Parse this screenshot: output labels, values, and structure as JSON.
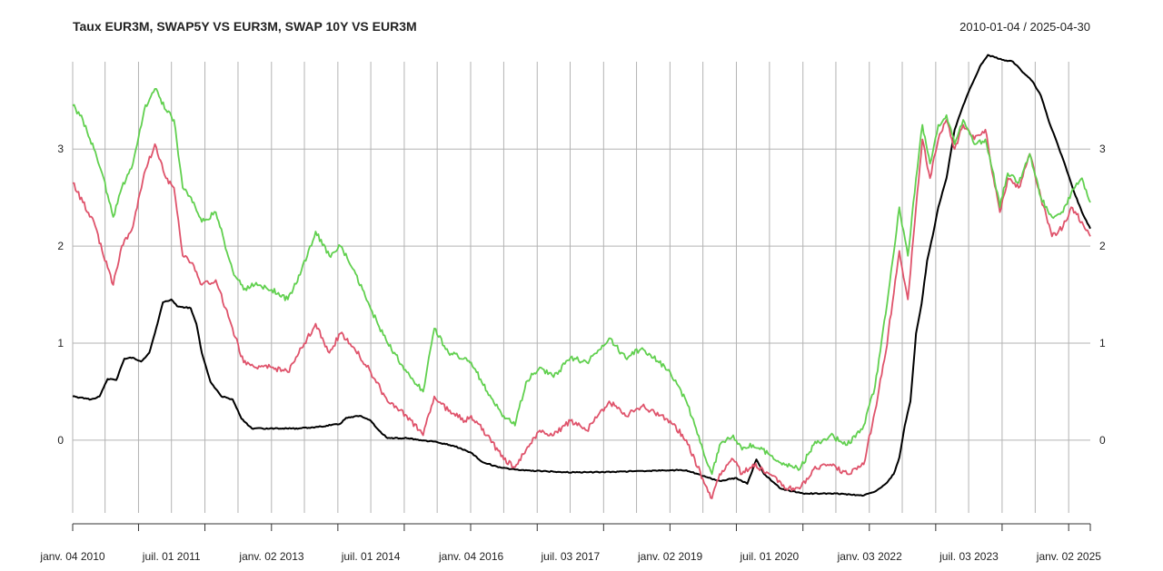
{
  "chart_data": {
    "type": "line",
    "title": "Taux EUR3M, SWAP5Y VS EUR3M, SWAP 10Y VS EUR3M",
    "date_range": "2010-01-04 / 2025-04-30",
    "xlabel": "",
    "ylabel": "",
    "x_range": [
      "2010-01-04",
      "2025-04-30"
    ],
    "ylim": [
      -0.75,
      3.9
    ],
    "grid": true,
    "x_ticks": [
      {
        "date": "2010-01-04",
        "label": "janv. 04 2010"
      },
      {
        "date": "2011-07-01",
        "label": "juil. 01 2011"
      },
      {
        "date": "2013-01-02",
        "label": "janv. 02 2013"
      },
      {
        "date": "2014-07-01",
        "label": "juil. 01 2014"
      },
      {
        "date": "2016-01-04",
        "label": "janv. 04 2016"
      },
      {
        "date": "2017-07-03",
        "label": "juil. 03 2017"
      },
      {
        "date": "2019-01-02",
        "label": "janv. 02 2019"
      },
      {
        "date": "2020-07-01",
        "label": "juil. 01 2020"
      },
      {
        "date": "2022-01-03",
        "label": "janv. 03 2022"
      },
      {
        "date": "2023-07-03",
        "label": "juil. 03 2023"
      },
      {
        "date": "2025-01-02",
        "label": "janv. 02 2025"
      }
    ],
    "y_ticks": [
      {
        "value": 0,
        "label": "0"
      },
      {
        "value": 1,
        "label": "1"
      },
      {
        "value": 2,
        "label": "2"
      },
      {
        "value": 3,
        "label": "3"
      }
    ],
    "series": [
      {
        "color": "#000000",
        "points": [
          [
            "2010-01-04",
            0.45
          ],
          [
            "2010-04-15",
            0.42
          ],
          [
            "2010-06-01",
            0.45
          ],
          [
            "2010-07-15",
            0.63
          ],
          [
            "2010-09-01",
            0.62
          ],
          [
            "2010-10-15",
            0.84
          ],
          [
            "2010-12-01",
            0.85
          ],
          [
            "2011-01-15",
            0.81
          ],
          [
            "2011-03-01",
            0.9
          ],
          [
            "2011-04-15",
            1.2
          ],
          [
            "2011-05-15",
            1.42
          ],
          [
            "2011-07-01",
            1.45
          ],
          [
            "2011-08-01",
            1.38
          ],
          [
            "2011-10-15",
            1.36
          ],
          [
            "2011-11-15",
            1.2
          ],
          [
            "2011-12-15",
            0.9
          ],
          [
            "2012-02-01",
            0.6
          ],
          [
            "2012-04-01",
            0.45
          ],
          [
            "2012-06-01",
            0.42
          ],
          [
            "2012-07-20",
            0.22
          ],
          [
            "2012-09-15",
            0.12
          ],
          [
            "2013-06-01",
            0.12
          ],
          [
            "2013-10-01",
            0.14
          ],
          [
            "2014-01-15",
            0.17
          ],
          [
            "2014-02-15",
            0.23
          ],
          [
            "2014-05-01",
            0.25
          ],
          [
            "2014-06-10",
            0.22
          ],
          [
            "2014-07-01",
            0.2
          ],
          [
            "2014-08-15",
            0.1
          ],
          [
            "2014-10-01",
            0.02
          ],
          [
            "2015-01-15",
            0.02
          ],
          [
            "2015-04-01",
            0.0
          ],
          [
            "2015-07-01",
            -0.02
          ],
          [
            "2015-10-01",
            -0.06
          ],
          [
            "2016-01-04",
            -0.13
          ],
          [
            "2016-03-01",
            -0.22
          ],
          [
            "2016-06-01",
            -0.28
          ],
          [
            "2016-10-01",
            -0.31
          ],
          [
            "2017-06-01",
            -0.33
          ],
          [
            "2018-01-01",
            -0.33
          ],
          [
            "2019-01-02",
            -0.31
          ],
          [
            "2019-04-01",
            -0.31
          ],
          [
            "2019-07-01",
            -0.37
          ],
          [
            "2019-10-01",
            -0.42
          ],
          [
            "2020-01-01",
            -0.39
          ],
          [
            "2020-03-01",
            -0.45
          ],
          [
            "2020-04-20",
            -0.2
          ],
          [
            "2020-06-01",
            -0.35
          ],
          [
            "2020-09-01",
            -0.5
          ],
          [
            "2021-01-01",
            -0.55
          ],
          [
            "2021-07-01",
            -0.55
          ],
          [
            "2021-12-01",
            -0.57
          ],
          [
            "2022-02-01",
            -0.53
          ],
          [
            "2022-04-01",
            -0.45
          ],
          [
            "2022-05-15",
            -0.35
          ],
          [
            "2022-06-15",
            -0.18
          ],
          [
            "2022-07-15",
            0.15
          ],
          [
            "2022-08-15",
            0.4
          ],
          [
            "2022-09-15",
            1.1
          ],
          [
            "2022-10-15",
            1.4
          ],
          [
            "2022-11-15",
            1.85
          ],
          [
            "2022-12-15",
            2.1
          ],
          [
            "2023-01-15",
            2.4
          ],
          [
            "2023-03-01",
            2.7
          ],
          [
            "2023-04-15",
            3.2
          ],
          [
            "2023-06-01",
            3.45
          ],
          [
            "2023-07-15",
            3.65
          ],
          [
            "2023-09-01",
            3.85
          ],
          [
            "2023-10-15",
            3.97
          ],
          [
            "2024-01-01",
            3.92
          ],
          [
            "2024-03-01",
            3.9
          ],
          [
            "2024-05-01",
            3.78
          ],
          [
            "2024-06-15",
            3.7
          ],
          [
            "2024-08-01",
            3.55
          ],
          [
            "2024-09-15",
            3.28
          ],
          [
            "2024-11-01",
            3.05
          ],
          [
            "2024-12-15",
            2.82
          ],
          [
            "2025-02-01",
            2.55
          ],
          [
            "2025-03-15",
            2.35
          ],
          [
            "2025-04-30",
            2.18
          ]
        ]
      },
      {
        "color": "#df536b",
        "points": [
          [
            "2010-01-04",
            2.65
          ],
          [
            "2010-03-01",
            2.45
          ],
          [
            "2010-05-01",
            2.25
          ],
          [
            "2010-06-15",
            1.95
          ],
          [
            "2010-08-15",
            1.6
          ],
          [
            "2010-10-01",
            2.0
          ],
          [
            "2010-12-01",
            2.2
          ],
          [
            "2011-02-01",
            2.75
          ],
          [
            "2011-04-01",
            3.05
          ],
          [
            "2011-06-01",
            2.7
          ],
          [
            "2011-07-15",
            2.6
          ],
          [
            "2011-09-01",
            1.9
          ],
          [
            "2011-11-01",
            1.8
          ],
          [
            "2011-12-15",
            1.6
          ],
          [
            "2012-03-01",
            1.65
          ],
          [
            "2012-06-01",
            1.15
          ],
          [
            "2012-08-01",
            0.8
          ],
          [
            "2012-10-01",
            0.75
          ],
          [
            "2013-01-02",
            0.75
          ],
          [
            "2013-04-01",
            0.7
          ],
          [
            "2013-06-15",
            0.95
          ],
          [
            "2013-09-01",
            1.2
          ],
          [
            "2013-11-15",
            0.9
          ],
          [
            "2014-01-15",
            1.1
          ],
          [
            "2014-04-01",
            0.95
          ],
          [
            "2014-07-01",
            0.7
          ],
          [
            "2014-10-01",
            0.4
          ],
          [
            "2015-01-15",
            0.25
          ],
          [
            "2015-04-15",
            0.05
          ],
          [
            "2015-06-15",
            0.45
          ],
          [
            "2015-09-01",
            0.3
          ],
          [
            "2015-12-01",
            0.2
          ],
          [
            "2016-01-04",
            0.25
          ],
          [
            "2016-04-01",
            0.05
          ],
          [
            "2016-07-01",
            -0.2
          ],
          [
            "2016-09-01",
            -0.28
          ],
          [
            "2016-11-01",
            -0.1
          ],
          [
            "2017-01-15",
            0.1
          ],
          [
            "2017-04-01",
            0.05
          ],
          [
            "2017-07-03",
            0.2
          ],
          [
            "2017-10-01",
            0.1
          ],
          [
            "2018-02-01",
            0.4
          ],
          [
            "2018-05-01",
            0.25
          ],
          [
            "2018-08-01",
            0.35
          ],
          [
            "2018-11-01",
            0.25
          ],
          [
            "2019-01-02",
            0.2
          ],
          [
            "2019-04-01",
            0.0
          ],
          [
            "2019-07-01",
            -0.4
          ],
          [
            "2019-08-20",
            -0.6
          ],
          [
            "2019-10-01",
            -0.35
          ],
          [
            "2019-12-15",
            -0.2
          ],
          [
            "2020-02-01",
            -0.35
          ],
          [
            "2020-04-01",
            -0.25
          ],
          [
            "2020-07-01",
            -0.35
          ],
          [
            "2020-10-01",
            -0.5
          ],
          [
            "2020-12-15",
            -0.5
          ],
          [
            "2021-03-01",
            -0.3
          ],
          [
            "2021-06-01",
            -0.25
          ],
          [
            "2021-09-01",
            -0.35
          ],
          [
            "2021-12-01",
            -0.25
          ],
          [
            "2022-02-01",
            0.3
          ],
          [
            "2022-04-01",
            0.9
          ],
          [
            "2022-06-15",
            1.95
          ],
          [
            "2022-08-01",
            1.45
          ],
          [
            "2022-09-15",
            2.4
          ],
          [
            "2022-10-20",
            3.1
          ],
          [
            "2022-12-01",
            2.7
          ],
          [
            "2023-01-15",
            3.1
          ],
          [
            "2023-03-01",
            3.3
          ],
          [
            "2023-04-15",
            3.0
          ],
          [
            "2023-06-01",
            3.25
          ],
          [
            "2023-08-01",
            3.1
          ],
          [
            "2023-10-01",
            3.2
          ],
          [
            "2023-11-15",
            2.7
          ],
          [
            "2023-12-20",
            2.35
          ],
          [
            "2024-02-01",
            2.7
          ],
          [
            "2024-04-01",
            2.6
          ],
          [
            "2024-06-01",
            2.95
          ],
          [
            "2024-08-01",
            2.5
          ],
          [
            "2024-10-01",
            2.1
          ],
          [
            "2024-12-01",
            2.2
          ],
          [
            "2025-01-15",
            2.4
          ],
          [
            "2025-03-15",
            2.25
          ],
          [
            "2025-04-30",
            2.1
          ]
        ]
      },
      {
        "color": "#61d04f",
        "points": [
          [
            "2010-01-04",
            3.45
          ],
          [
            "2010-03-01",
            3.3
          ],
          [
            "2010-05-01",
            3.0
          ],
          [
            "2010-06-15",
            2.75
          ],
          [
            "2010-08-15",
            2.3
          ],
          [
            "2010-10-01",
            2.6
          ],
          [
            "2010-12-01",
            2.85
          ],
          [
            "2011-02-01",
            3.4
          ],
          [
            "2011-04-01",
            3.62
          ],
          [
            "2011-06-01",
            3.4
          ],
          [
            "2011-07-15",
            3.3
          ],
          [
            "2011-09-01",
            2.6
          ],
          [
            "2011-11-01",
            2.45
          ],
          [
            "2011-12-15",
            2.25
          ],
          [
            "2012-03-01",
            2.35
          ],
          [
            "2012-06-01",
            1.75
          ],
          [
            "2012-08-01",
            1.55
          ],
          [
            "2012-10-01",
            1.6
          ],
          [
            "2013-01-02",
            1.55
          ],
          [
            "2013-04-01",
            1.45
          ],
          [
            "2013-06-15",
            1.75
          ],
          [
            "2013-09-01",
            2.15
          ],
          [
            "2013-11-15",
            1.9
          ],
          [
            "2014-01-15",
            2.0
          ],
          [
            "2014-04-01",
            1.75
          ],
          [
            "2014-07-01",
            1.35
          ],
          [
            "2014-10-01",
            1.0
          ],
          [
            "2015-01-15",
            0.7
          ],
          [
            "2015-04-15",
            0.5
          ],
          [
            "2015-06-15",
            1.15
          ],
          [
            "2015-09-01",
            0.9
          ],
          [
            "2015-12-01",
            0.85
          ],
          [
            "2016-01-04",
            0.8
          ],
          [
            "2016-04-01",
            0.5
          ],
          [
            "2016-07-01",
            0.25
          ],
          [
            "2016-09-01",
            0.15
          ],
          [
            "2016-11-01",
            0.6
          ],
          [
            "2017-01-15",
            0.75
          ],
          [
            "2017-04-01",
            0.65
          ],
          [
            "2017-07-03",
            0.85
          ],
          [
            "2017-10-01",
            0.8
          ],
          [
            "2018-02-01",
            1.05
          ],
          [
            "2018-05-01",
            0.85
          ],
          [
            "2018-08-01",
            0.95
          ],
          [
            "2018-11-01",
            0.8
          ],
          [
            "2019-01-02",
            0.7
          ],
          [
            "2019-04-01",
            0.4
          ],
          [
            "2019-07-01",
            -0.1
          ],
          [
            "2019-08-20",
            -0.35
          ],
          [
            "2019-10-01",
            -0.05
          ],
          [
            "2019-12-15",
            0.05
          ],
          [
            "2020-02-01",
            -0.1
          ],
          [
            "2020-04-01",
            -0.05
          ],
          [
            "2020-07-01",
            -0.15
          ],
          [
            "2020-10-01",
            -0.25
          ],
          [
            "2020-12-15",
            -0.3
          ],
          [
            "2021-03-01",
            -0.05
          ],
          [
            "2021-06-01",
            0.05
          ],
          [
            "2021-09-01",
            -0.05
          ],
          [
            "2021-12-01",
            0.15
          ],
          [
            "2022-02-01",
            0.55
          ],
          [
            "2022-04-01",
            1.3
          ],
          [
            "2022-06-15",
            2.4
          ],
          [
            "2022-08-01",
            1.9
          ],
          [
            "2022-09-15",
            2.7
          ],
          [
            "2022-10-20",
            3.25
          ],
          [
            "2022-12-01",
            2.85
          ],
          [
            "2023-01-15",
            3.25
          ],
          [
            "2023-03-01",
            3.35
          ],
          [
            "2023-04-15",
            3.05
          ],
          [
            "2023-06-01",
            3.3
          ],
          [
            "2023-08-01",
            3.05
          ],
          [
            "2023-10-01",
            3.1
          ],
          [
            "2023-11-15",
            2.75
          ],
          [
            "2023-12-20",
            2.4
          ],
          [
            "2024-02-01",
            2.75
          ],
          [
            "2024-04-01",
            2.65
          ],
          [
            "2024-06-01",
            2.95
          ],
          [
            "2024-08-01",
            2.5
          ],
          [
            "2024-10-01",
            2.3
          ],
          [
            "2024-12-01",
            2.35
          ],
          [
            "2025-01-15",
            2.55
          ],
          [
            "2025-03-15",
            2.7
          ],
          [
            "2025-04-30",
            2.45
          ]
        ]
      }
    ]
  }
}
